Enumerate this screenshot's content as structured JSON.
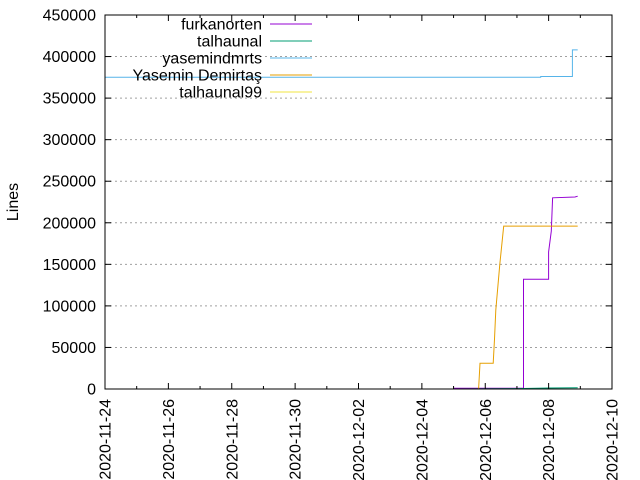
{
  "chart_data": {
    "type": "line",
    "ylabel": "Lines",
    "xlabel": "",
    "title": "",
    "grid": "horizontal dotted",
    "legend_position": "top-left",
    "xlim": [
      "2020-11-24",
      "2020-12-10"
    ],
    "ylim": [
      0,
      450000
    ],
    "x_ticks": [
      "2020-11-24",
      "2020-11-26",
      "2020-11-28",
      "2020-11-30",
      "2020-12-02",
      "2020-12-04",
      "2020-12-06",
      "2020-12-08",
      "2020-12-10"
    ],
    "y_ticks": [
      "0",
      "50000",
      "100000",
      "150000",
      "200000",
      "250000",
      "300000",
      "350000",
      "400000",
      "450000"
    ],
    "series": [
      {
        "name": "furkanorten",
        "color": "#9400d3",
        "points": [
          [
            "2020-12-05T00:00",
            1000
          ],
          [
            "2020-12-07T05:00",
            1000
          ],
          [
            "2020-12-07T05:00",
            132000
          ],
          [
            "2020-12-08T00:00",
            132000
          ],
          [
            "2020-12-08T00:00",
            165000
          ],
          [
            "2020-12-08T02:00",
            190000
          ],
          [
            "2020-12-08T03:00",
            230000
          ],
          [
            "2020-12-08T20:00",
            231000
          ],
          [
            "2020-12-08T22:00",
            232000
          ]
        ]
      },
      {
        "name": "talhaunal",
        "color": "#009e73",
        "points": [
          [
            "2020-12-05T00:00",
            0
          ],
          [
            "2020-12-07T00:00",
            500
          ],
          [
            "2020-12-08T00:00",
            1200
          ],
          [
            "2020-12-08T22:00",
            1500
          ]
        ]
      },
      {
        "name": "yasemindmrts",
        "color": "#56b4e9",
        "points": [
          [
            "2020-11-24T00:00",
            375000
          ],
          [
            "2020-12-07T18:00",
            375000
          ],
          [
            "2020-12-07T18:00",
            376000
          ],
          [
            "2020-12-08T18:00",
            376000
          ],
          [
            "2020-12-08T18:00",
            408000
          ],
          [
            "2020-12-08T22:00",
            408000
          ]
        ]
      },
      {
        "name": "Yasemin Demirtaş",
        "color": "#e69f00",
        "points": [
          [
            "2020-12-05T19:00",
            0
          ],
          [
            "2020-12-05T20:00",
            31000
          ],
          [
            "2020-12-06T06:00",
            31000
          ],
          [
            "2020-12-06T07:00",
            60000
          ],
          [
            "2020-12-06T08:00",
            95000
          ],
          [
            "2020-12-06T11:00",
            150000
          ],
          [
            "2020-12-06T14:00",
            196000
          ],
          [
            "2020-12-08T22:00",
            196000
          ]
        ]
      },
      {
        "name": "talhaunal99",
        "color": "#f0e442",
        "points": []
      }
    ]
  }
}
